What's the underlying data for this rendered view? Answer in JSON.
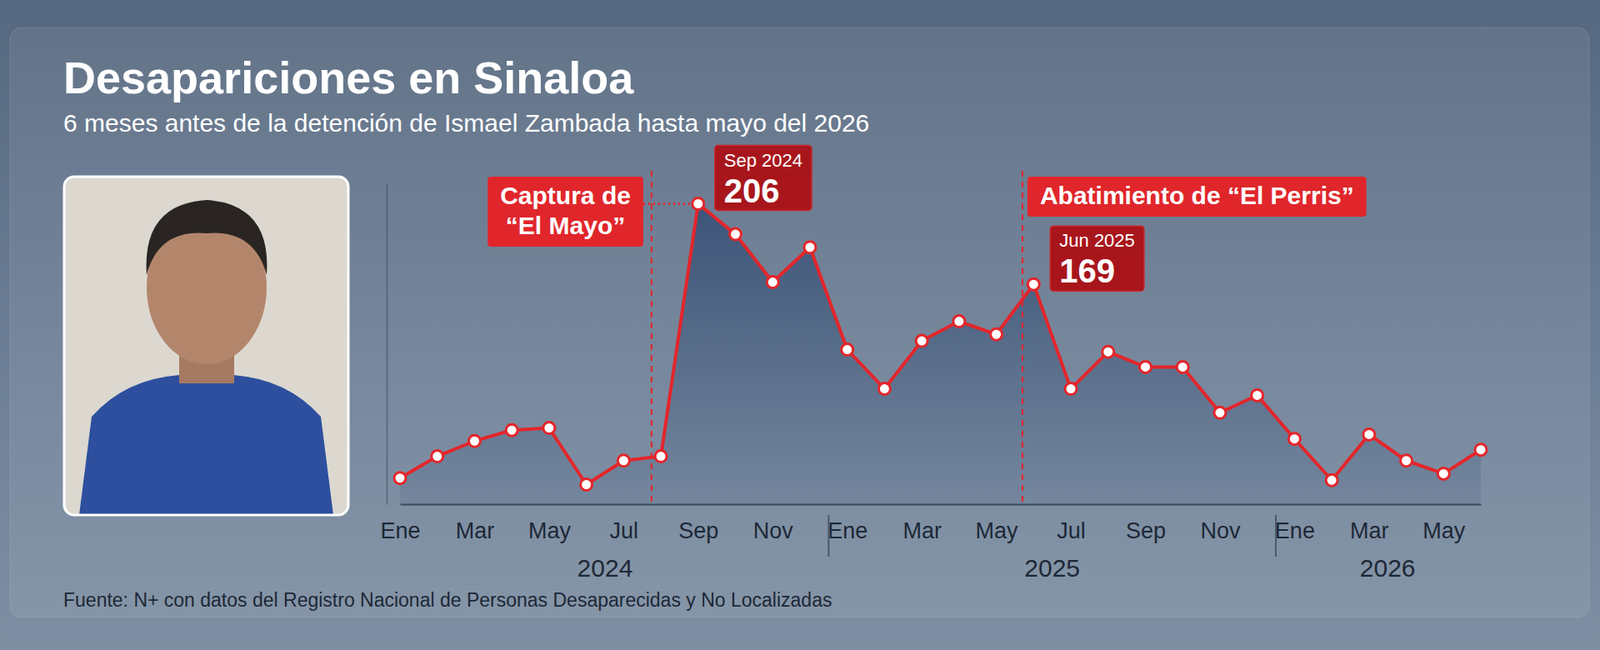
{
  "chart_data": {
    "type": "area",
    "title": "Desapariciones en Sinaloa",
    "subtitle": "6 meses antes de la detención de Ismael Zambada hasta mayo del 2026",
    "source": "Fuente: N+ con datos del Registro Nacional de Personas Desaparecidas y No Localizadas",
    "categories": [
      "Ene",
      null,
      "Mar",
      null,
      "May",
      null,
      "Jul",
      null,
      "Sep",
      null,
      "Nov",
      null,
      "Ene",
      null,
      "Mar",
      null,
      "May",
      null,
      "Jul",
      null,
      "Sep",
      null,
      "Nov",
      null,
      "Ene",
      null,
      "Mar",
      null,
      "May",
      null
    ],
    "x_groups": [
      {
        "label": "2024",
        "from": 0,
        "to": 11
      },
      {
        "label": "2025",
        "from": 12,
        "to": 23
      },
      {
        "label": "2026",
        "from": 24,
        "to": 29
      }
    ],
    "values": [
      80,
      90,
      97,
      102,
      103,
      77,
      88,
      90,
      206,
      192,
      170,
      186,
      139,
      121,
      143,
      152,
      146,
      169,
      121,
      138,
      131,
      131,
      110,
      118,
      98,
      79,
      100,
      88,
      82,
      93
    ],
    "color": "#e3262b",
    "marker": "circle",
    "ylim": [
      68,
      215
    ],
    "yticks": [],
    "tick_labels": "x",
    "grid": false,
    "highlights": [
      {
        "index": 8,
        "label": "Sep 2024"
      },
      {
        "index": 17,
        "label": "Jun 2025"
      }
    ],
    "annotations": [
      {
        "text": [
          "Captura de",
          "“El Mayo”"
        ],
        "at": 6.75
      },
      {
        "text": [
          "Abatimiento de “El Perris”"
        ],
        "at": 16.7
      }
    ]
  }
}
